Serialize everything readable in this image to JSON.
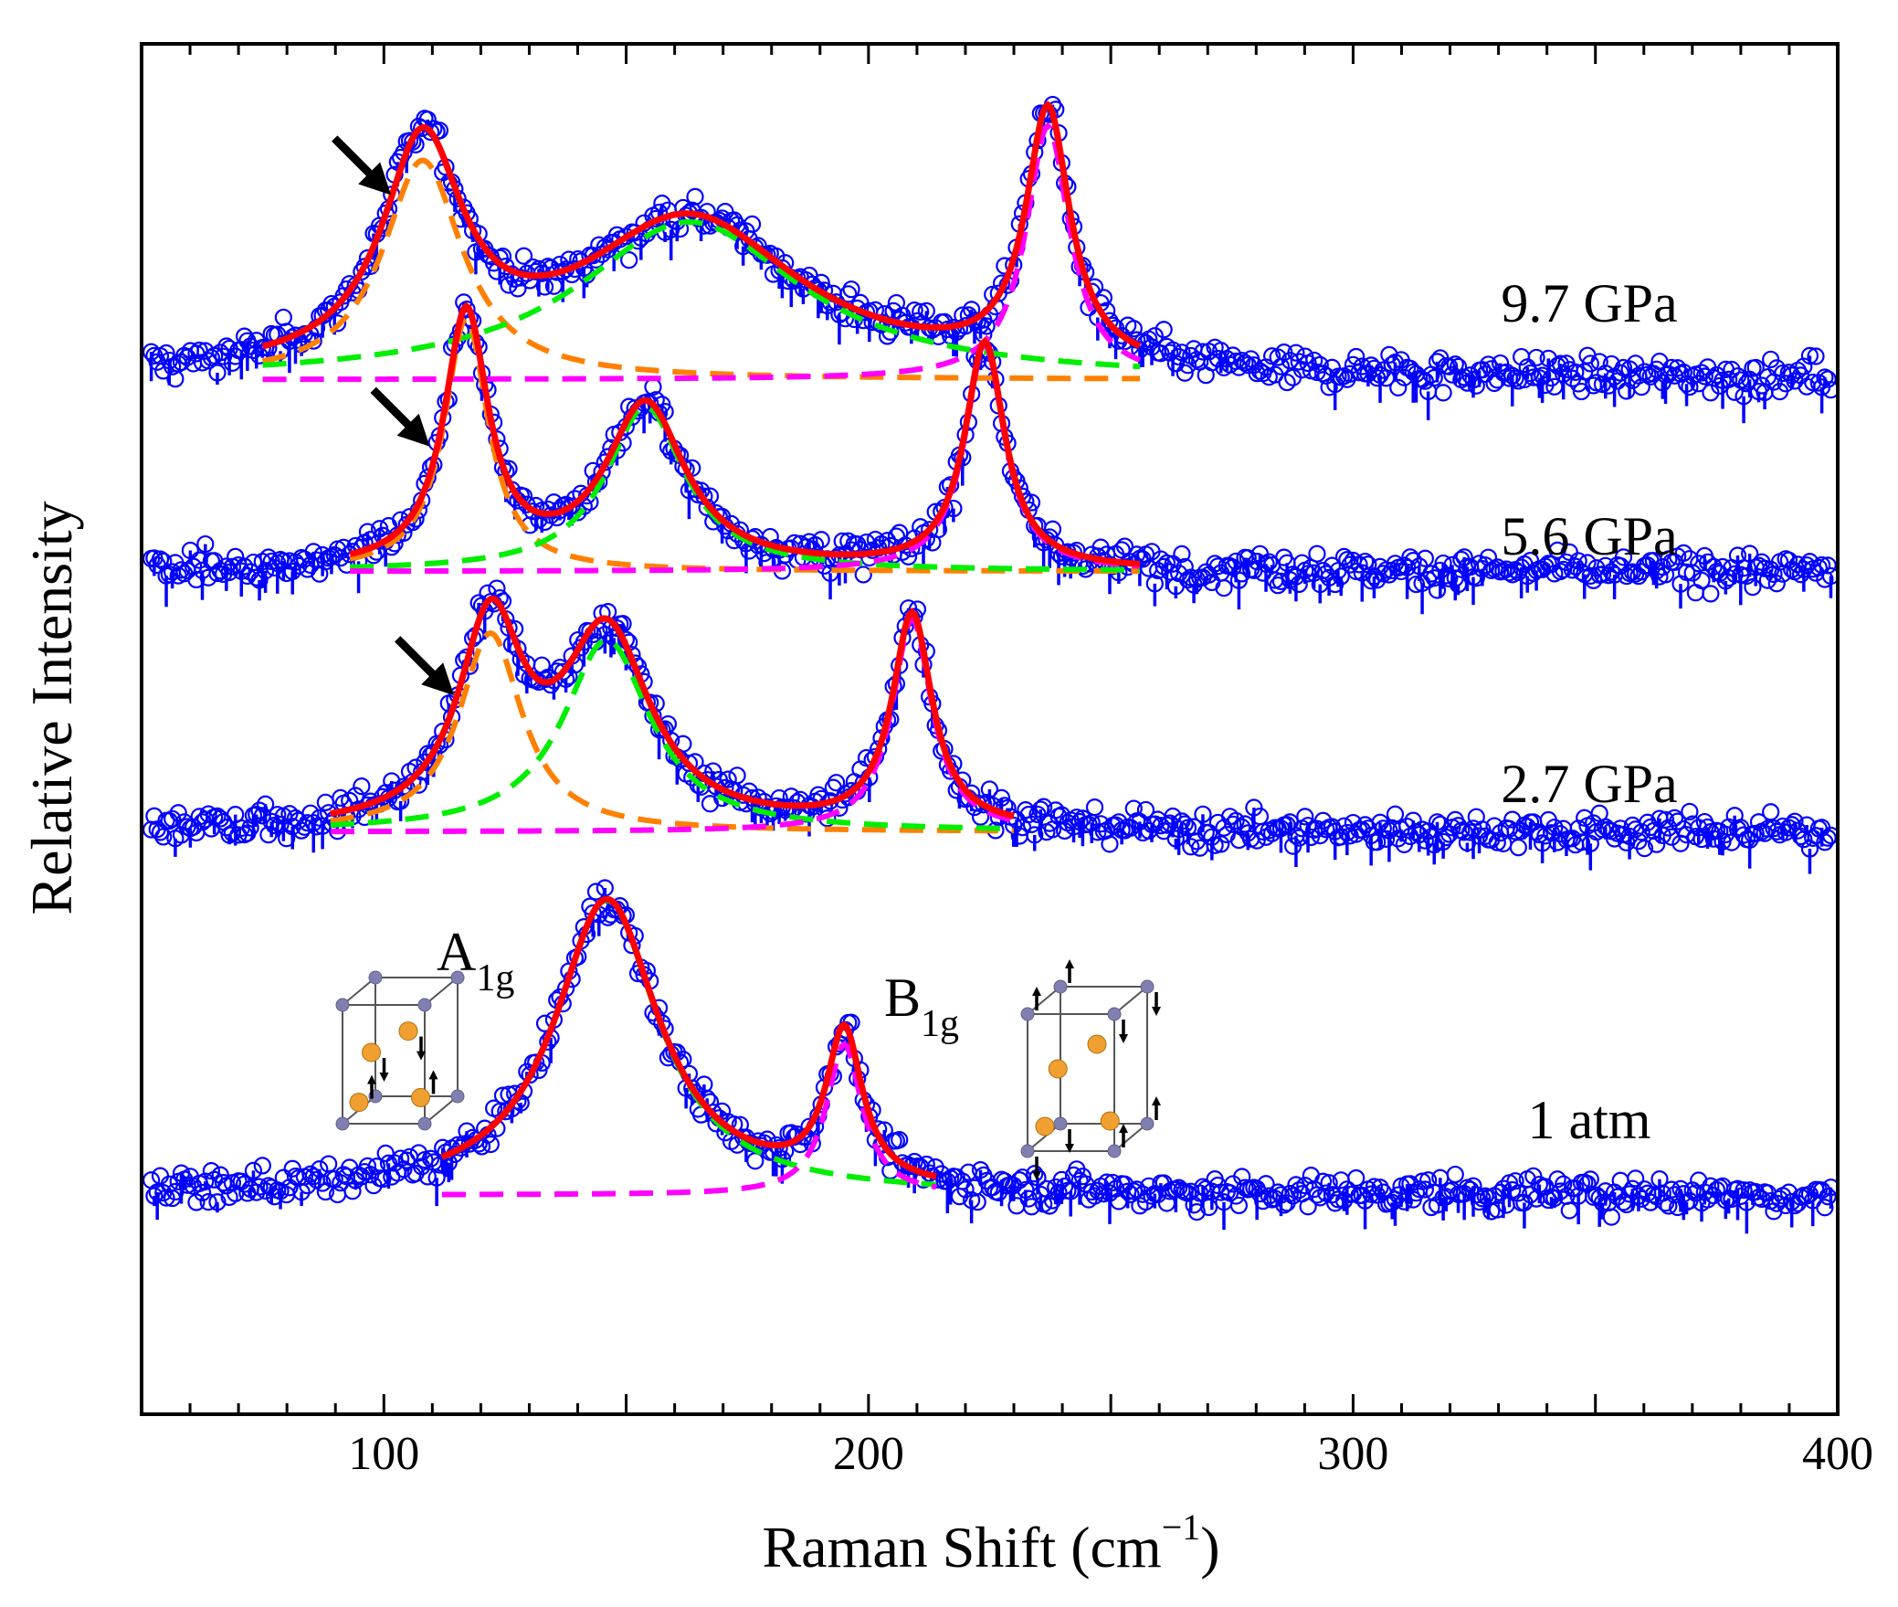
{
  "chart_data": {
    "type": "line",
    "title": "",
    "xlabel": "Raman Shift (cm",
    "xlabel_sup": "−1",
    "xlabel_end": ")",
    "ylabel": "Relative Intensity",
    "xlim": [
      50,
      400
    ],
    "ylim": [
      0,
      100
    ],
    "x_ticks": [
      100,
      200,
      300,
      400
    ],
    "x_tick_labels": [
      "100",
      "200",
      "300",
      "400"
    ],
    "y_ticks_shown": false,
    "colors": {
      "data": "#0000ff",
      "total_fit": "#ff0000",
      "low_mode": "#ff8000",
      "a1g": "#00ee00",
      "b1g": "#ff00ff",
      "arrow": "#000000",
      "atom_large": "#f0a030",
      "atom_small": "#8080b0"
    },
    "series": [
      {
        "name": "9.7 GPa",
        "label": "9.7 GPa",
        "baseline": 75.5,
        "fit_range": [
          75,
          256
        ],
        "arrow_at": 103,
        "peaks": [
          {
            "mode": "low",
            "center": 108,
            "amplitude": 16.0,
            "width": 10
          },
          {
            "mode": "A1g",
            "center": 163,
            "amplitude": 11.5,
            "width": 28
          },
          {
            "mode": "B1g",
            "center": 237,
            "amplitude": 18.5,
            "width": 5.5
          }
        ]
      },
      {
        "name": "5.6 GPa",
        "label": "5.6 GPa",
        "baseline": 61.5,
        "fit_range": [
          93,
          256
        ],
        "arrow_at": 111,
        "peaks": [
          {
            "mode": "low",
            "center": 117,
            "amplitude": 18.5,
            "width": 5.5
          },
          {
            "mode": "A1g",
            "center": 154,
            "amplitude": 12.0,
            "width": 10
          },
          {
            "mode": "B1g",
            "center": 224,
            "amplitude": 16.5,
            "width": 5.0
          }
        ]
      },
      {
        "name": "2.7 GPa",
        "label": "2.7 GPa",
        "baseline": 42.5,
        "fit_range": [
          89,
          230
        ],
        "arrow_at": 116,
        "peaks": [
          {
            "mode": "low",
            "center": 122,
            "amplitude": 14.5,
            "width": 8
          },
          {
            "mode": "A1g",
            "center": 146,
            "amplitude": 14.0,
            "width": 11
          },
          {
            "mode": "B1g",
            "center": 209,
            "amplitude": 15.5,
            "width": 5.0
          }
        ]
      },
      {
        "name": "1 atm",
        "label": "1 atm",
        "baseline": 16.0,
        "fit_range": [
          112,
          214
        ],
        "arrow_at": null,
        "peaks": [
          {
            "mode": "A1g",
            "center": 146,
            "amplitude": 21.5,
            "width": 13
          },
          {
            "mode": "B1g",
            "center": 195,
            "amplitude": 11.0,
            "width": 4.5
          }
        ]
      }
    ],
    "annotations": {
      "a1g_label": "A",
      "a1g_sub": "1g",
      "b1g_label": "B",
      "b1g_sub": "1g"
    }
  }
}
